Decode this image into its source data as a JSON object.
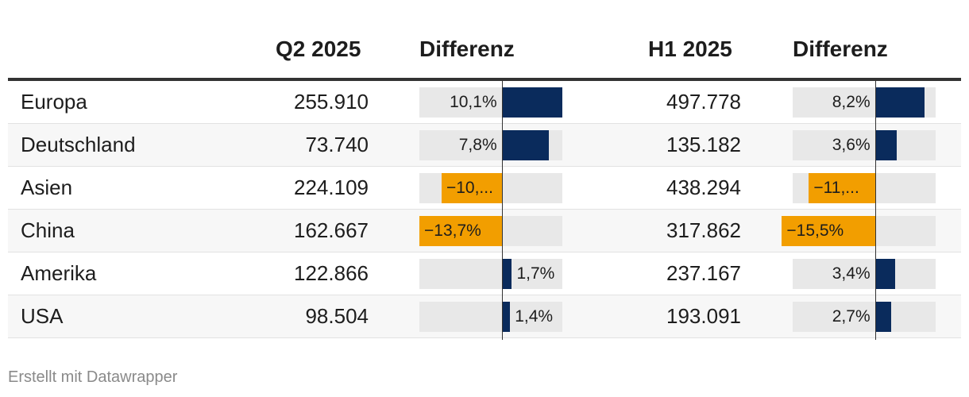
{
  "chart_data": {
    "type": "table",
    "columns": [
      "",
      "Q2 2025",
      "Differenz",
      "H1 2025",
      "Differenz"
    ],
    "rows": [
      {
        "label": "Europa",
        "q2": "255.910",
        "q2_diff": 10.1,
        "q2_diff_label": "10,1%",
        "h1": "497.778",
        "h1_diff": 8.2,
        "h1_diff_label": "8,2%"
      },
      {
        "label": "Deutschland",
        "q2": "73.740",
        "q2_diff": 7.8,
        "q2_diff_label": "7,8%",
        "h1": "135.182",
        "h1_diff": 3.6,
        "h1_diff_label": "3,6%"
      },
      {
        "label": "Asien",
        "q2": "224.109",
        "q2_diff": -10.0,
        "q2_diff_label": "−10,...",
        "h1": "438.294",
        "h1_diff": -11.0,
        "h1_diff_label": "−11,..."
      },
      {
        "label": "China",
        "q2": "162.667",
        "q2_diff": -13.7,
        "q2_diff_label": "−13,7%",
        "h1": "317.862",
        "h1_diff": -15.5,
        "h1_diff_label": "−15,5%"
      },
      {
        "label": "Amerika",
        "q2": "122.866",
        "q2_diff": 1.7,
        "q2_diff_label": "1,7%",
        "h1": "237.167",
        "h1_diff": 3.4,
        "h1_diff_label": "3,4%"
      },
      {
        "label": "USA",
        "q2": "98.504",
        "q2_diff": 1.4,
        "q2_diff_label": "1,4%",
        "h1": "193.091",
        "h1_diff": 2.7,
        "h1_diff_label": "2,7%"
      }
    ],
    "diff_range": [
      -13.7,
      10.1
    ],
    "colors": {
      "positive": "#0a2b5c",
      "negative": "#f29e00",
      "track": "#e8e8e8"
    }
  },
  "footer": "Erstellt mit Datawrapper"
}
